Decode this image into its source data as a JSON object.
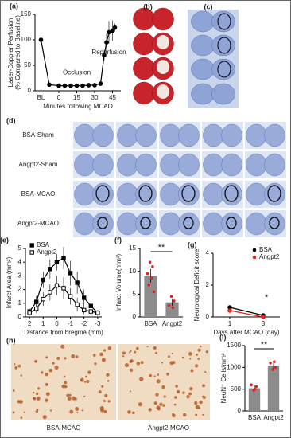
{
  "chart_data": [
    {
      "type": "line",
      "label": "(a)",
      "xlabel": "Minutes following MCAO",
      "ylabel": [
        "Laser-Doppler Perfusion",
        "(% Compared to Baseline)"
      ],
      "annotations": [
        "Occlusion",
        "Reperfusion"
      ],
      "x": [
        -15,
        -8,
        0,
        5,
        10,
        15,
        20,
        25,
        30,
        35,
        38,
        40,
        42,
        45,
        47
      ],
      "xlim": [
        -20,
        52
      ],
      "xticks": [
        {
          "value": -15,
          "label": "BL"
        },
        0,
        15,
        30,
        45
      ],
      "ylim": [
        0,
        150
      ],
      "yticks": [
        0,
        50,
        100,
        150
      ],
      "series": [
        {
          "color": "#000000",
          "marker": "circle",
          "values": [
            100,
            12,
            10,
            10,
            10,
            10,
            10,
            11,
            11,
            14,
            70,
            95,
            115,
            118,
            124
          ],
          "errors": [
            null,
            null,
            null,
            null,
            null,
            null,
            null,
            null,
            null,
            null,
            10,
            18,
            22,
            20,
            8
          ]
        }
      ]
    },
    {
      "type": "line",
      "label": "(e)",
      "xlabel": "Distance from bregma (mm)",
      "ylabel": "Infarct Area (mm²)",
      "legend": "upper left",
      "x": [
        2,
        1.5,
        1,
        0.5,
        0,
        -0.5,
        -1,
        -1.5,
        -2,
        -2.5,
        -3
      ],
      "xlim": [
        2.3,
        -3.3
      ],
      "xticks": [
        2,
        1,
        0,
        -1,
        -2,
        -3
      ],
      "ylim": [
        0,
        5
      ],
      "yticks": [
        0,
        1,
        2,
        3,
        4,
        5
      ],
      "series": [
        {
          "name": "BSA",
          "color": "#000000",
          "marker": "square",
          "values": [
            0.4,
            1.1,
            2.7,
            3.5,
            4.0,
            4.3,
            3.2,
            2.5,
            1.4,
            0.8,
            0.3
          ],
          "errors": [
            0.2,
            0.4,
            0.6,
            0.7,
            0.6,
            0.8,
            0.9,
            0.8,
            0.6,
            0.4,
            0.2
          ]
        },
        {
          "name": "Angpt2",
          "color": "#000000",
          "marker": "square",
          "open": true,
          "values": [
            0.3,
            0.6,
            1.3,
            1.8,
            2.3,
            2.1,
            1.5,
            0.9,
            0.5,
            0.4,
            0.3
          ],
          "errors": [
            0.2,
            0.3,
            0.5,
            0.6,
            0.7,
            0.8,
            0.6,
            0.5,
            0.3,
            0.2,
            0.2
          ]
        }
      ]
    },
    {
      "type": "bar",
      "label": "(f)",
      "ylabel": "Infarct Volume(mm³)",
      "annotations": [
        "**"
      ],
      "categories": [
        "BSA",
        "Angpt2"
      ],
      "color": "#8c8c8c",
      "point_color": "#e0231c",
      "values": [
        9,
        3.2
      ],
      "errors": [
        1.5,
        0.8
      ],
      "points": [
        [
          12,
          11,
          9.5,
          8.5,
          7,
          5.5
        ],
        [
          4.5,
          3.5,
          2.5,
          2
        ]
      ],
      "ylim": [
        0,
        15
      ],
      "yticks": [
        0,
        5,
        10,
        15
      ]
    },
    {
      "type": "line",
      "label": "(g)",
      "xlabel": "Days after MCAO (day)",
      "ylabel": "Neurological Deficit score",
      "legend": "upper right",
      "annotations": [
        "*"
      ],
      "x": [
        1,
        3
      ],
      "xlim": [
        0,
        4
      ],
      "xticks": [
        1,
        3
      ],
      "ylim": [
        0,
        4
      ],
      "yticks": [
        0,
        2,
        4
      ],
      "series": [
        {
          "name": "BSA",
          "color": "#000000",
          "marker": "circle",
          "values": [
            0.6,
            0.1
          ]
        },
        {
          "name": "Angpt2",
          "color": "#e0231c",
          "marker": "circle",
          "values": [
            0.4,
            0.0
          ]
        }
      ]
    },
    {
      "type": "bar",
      "label": "(i)",
      "ylabel": "NeuN⁺ Cells/mm²",
      "annotations": [
        "**"
      ],
      "categories": [
        "BSA",
        "Angpt2"
      ],
      "color": "#8c8c8c",
      "point_color": "#e0231c",
      "values": [
        520,
        1040
      ],
      "errors": [
        70,
        80
      ],
      "points": [
        [
          480,
          560,
          600,
          500
        ],
        [
          950,
          1000,
          1100,
          1130
        ]
      ],
      "ylim": [
        0,
        1500
      ],
      "yticks": [
        0,
        500,
        1000,
        1500
      ]
    }
  ],
  "panels": {
    "b": {
      "label": "(b)"
    },
    "c": {
      "label": "(c)"
    },
    "d": {
      "label": "(d)",
      "rows": [
        "BSA-Sham",
        "Angpt2-Sham",
        "BSA-MCAO",
        "Angpt2-MCAO"
      ]
    },
    "h": {
      "label": "(h)",
      "captions": [
        "BSA-MCAO",
        "Angpt2-MCAO"
      ]
    }
  }
}
